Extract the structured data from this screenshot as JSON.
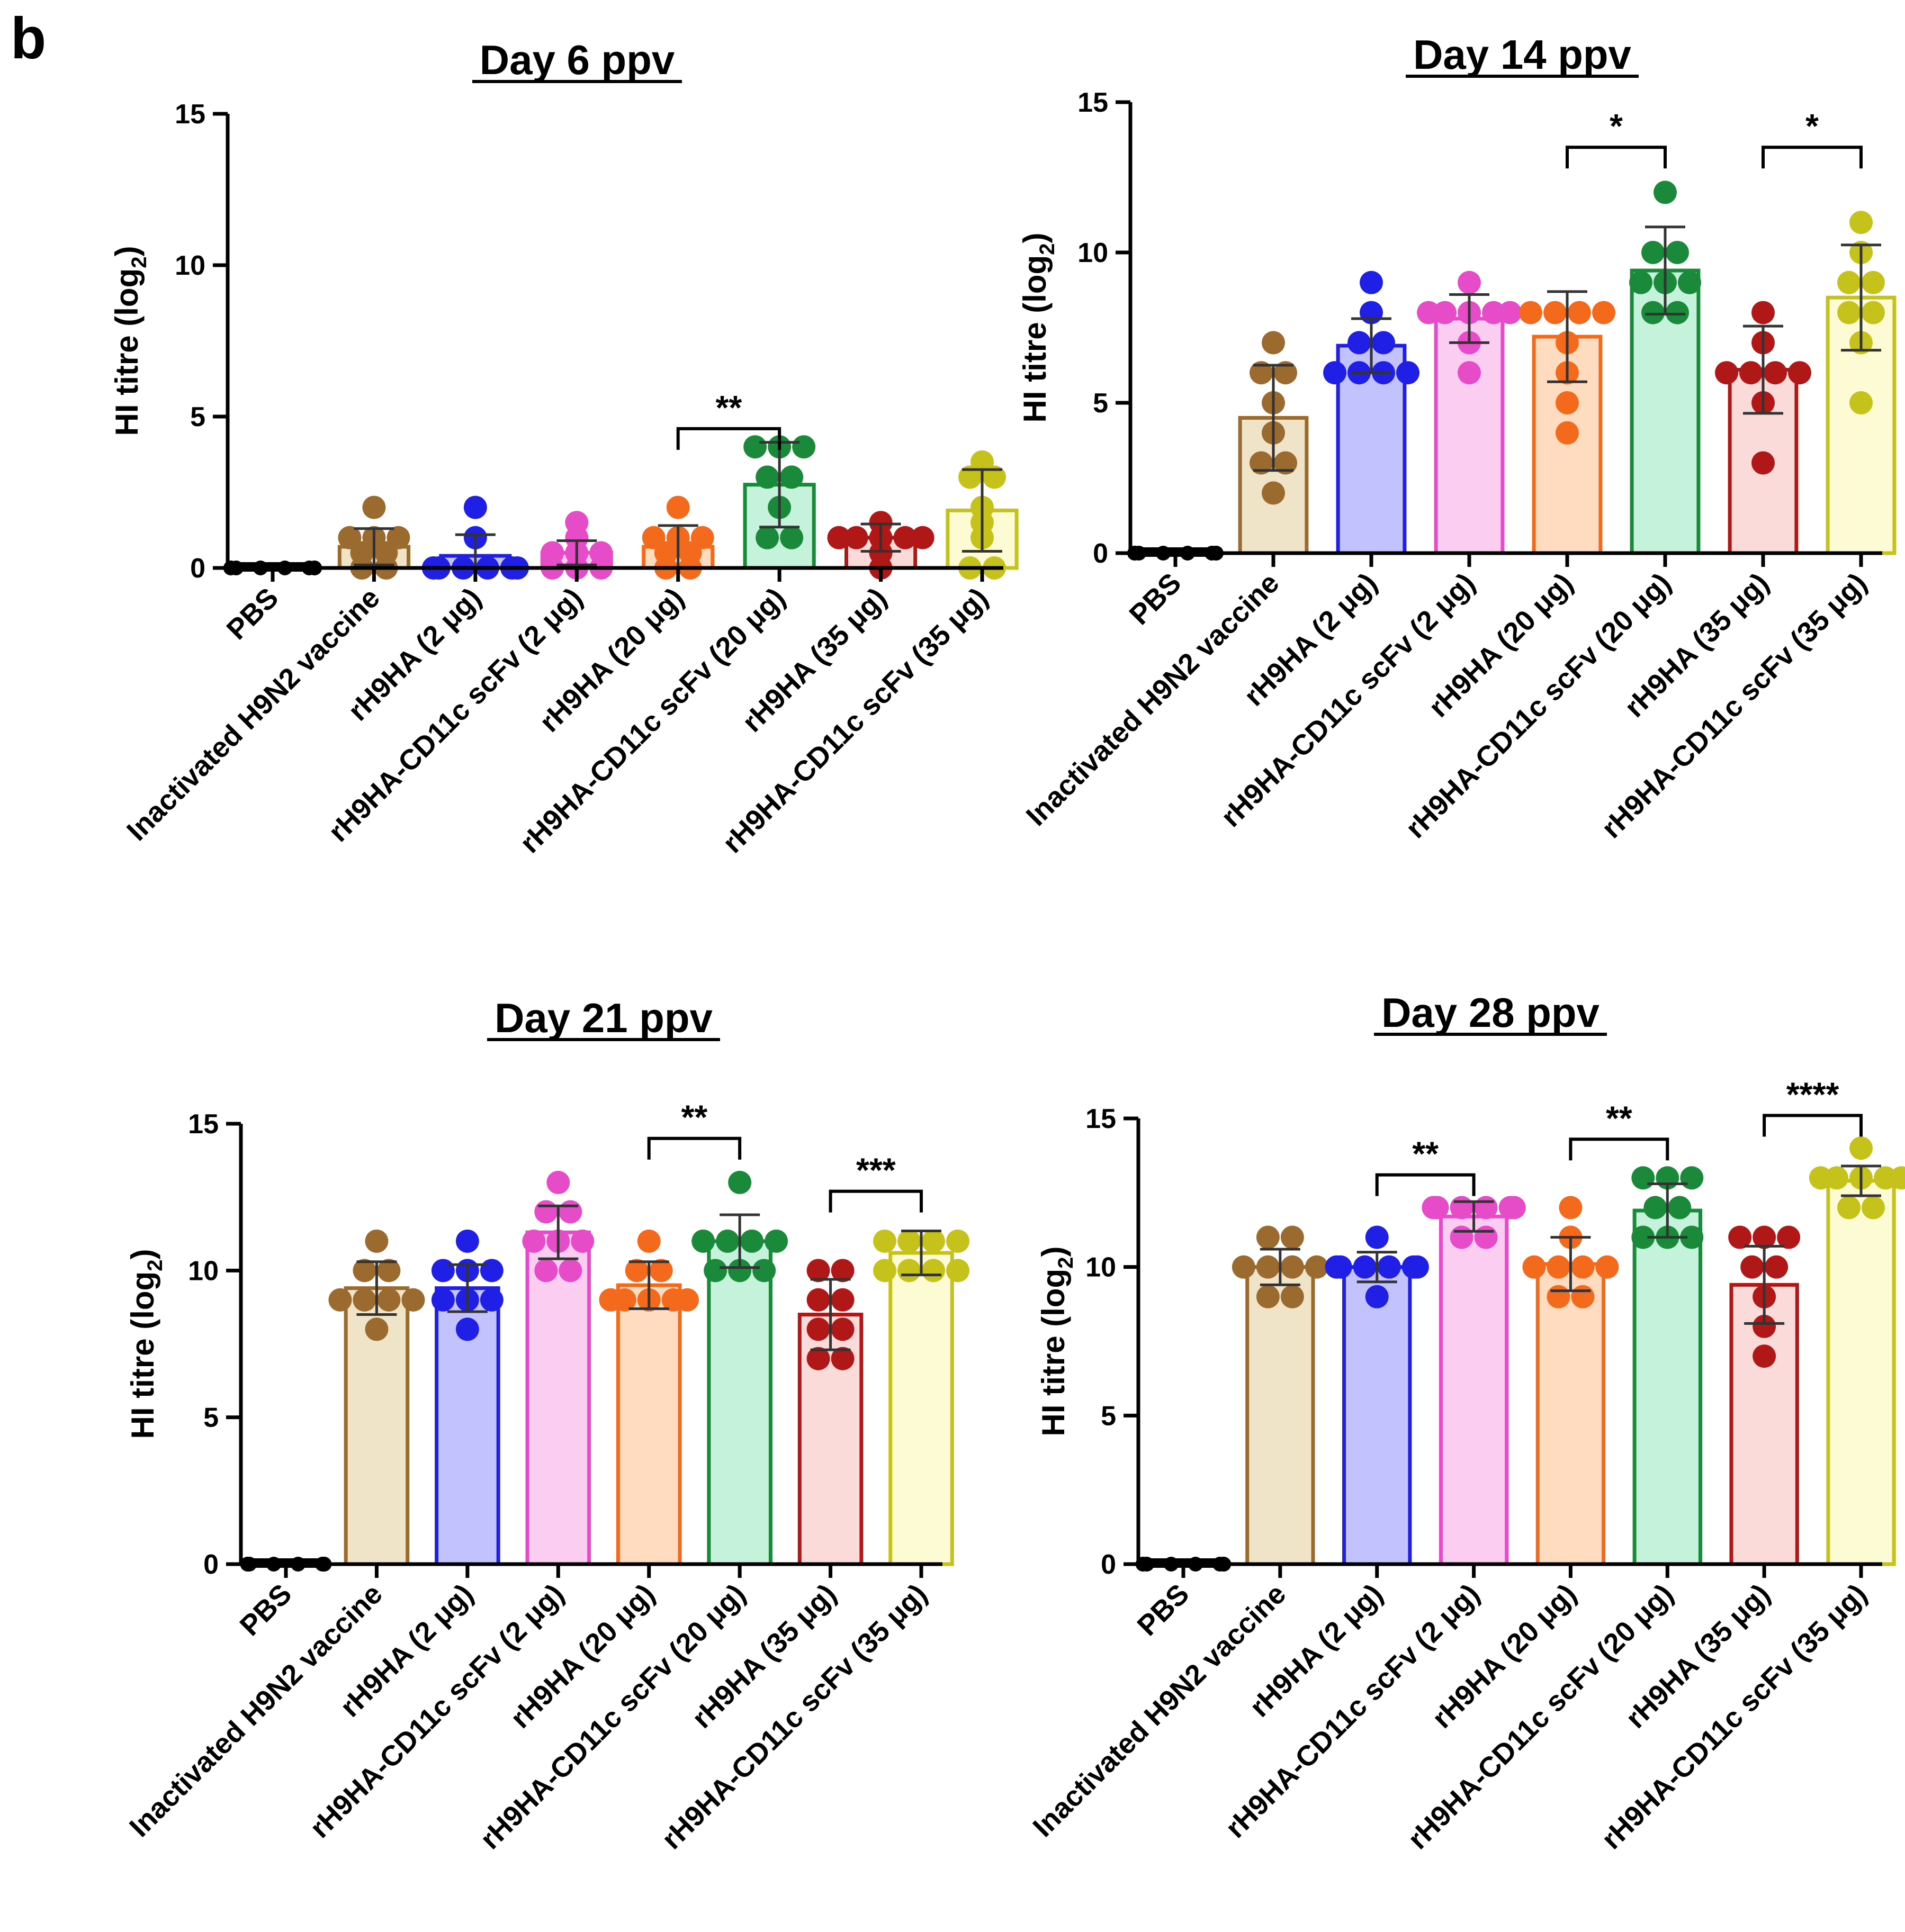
{
  "figure": {
    "panel_label": "b",
    "colors": {
      "axis": "#000000",
      "groups": [
        {
          "stroke": "#000000",
          "fill": "#ffffff",
          "dot": "#000000"
        },
        {
          "stroke": "#9a6a2e",
          "fill": "#efe3c8",
          "dot": "#9a6a2e"
        },
        {
          "stroke": "#1f1fe6",
          "fill": "#c2c2ff",
          "dot": "#1f1fe6"
        },
        {
          "stroke": "#e64bc8",
          "fill": "#fbcdf0",
          "dot": "#e64bc8"
        },
        {
          "stroke": "#f46a1c",
          "fill": "#ffdcbf",
          "dot": "#f46a1c"
        },
        {
          "stroke": "#1a8a3a",
          "fill": "#c4f2da",
          "dot": "#1a8a3a"
        },
        {
          "stroke": "#b01818",
          "fill": "#fbdada",
          "dot": "#b01818"
        },
        {
          "stroke": "#c5c21c",
          "fill": "#fdfbd4",
          "dot": "#c5c21c"
        }
      ]
    }
  },
  "chart_data": [
    {
      "type": "bar",
      "title": "Day 6 ppv",
      "ylabel_main": "HI titre  (log",
      "ylabel_sub": "2",
      "ylabel_close": ")",
      "ylim": [
        0,
        15
      ],
      "yticks": [
        "0",
        "5",
        "10",
        "15"
      ],
      "categories": [
        "PBS",
        "Inactivated H9N2 vaccine",
        "rH9HA (2 μg)",
        "rH9HA-CD11c scFv (2 μg)",
        "rH9HA (20 μg)",
        "rH9HA-CD11c scFv (20 μg)",
        "rH9HA (35 μg)",
        "rH9HA-CD11c scFv (35 μg)"
      ],
      "values": [
        0,
        0.7,
        0.4,
        0.5,
        0.7,
        2.75,
        1.0,
        1.9
      ],
      "error": [
        0,
        0.6,
        0.7,
        0.4,
        0.7,
        1.4,
        0.45,
        1.35
      ],
      "points": [
        [
          0,
          0,
          0,
          0,
          0,
          0,
          0,
          0
        ],
        [
          2,
          1,
          1,
          0.5,
          0.5,
          0,
          0,
          1
        ],
        [
          2,
          1,
          0,
          0,
          0,
          0,
          0,
          0
        ],
        [
          1.5,
          1,
          0.5,
          0.5,
          0,
          0,
          0,
          0.5
        ],
        [
          2,
          1,
          1,
          0.5,
          0.5,
          0,
          0,
          1
        ],
        [
          4,
          4,
          4,
          3,
          3,
          2,
          1,
          1
        ],
        [
          1.5,
          1,
          1,
          1,
          1,
          0.5,
          0,
          1
        ],
        [
          3.5,
          3,
          3,
          2,
          1.5,
          1,
          0,
          0
        ]
      ],
      "comparisons": [
        {
          "from": 4,
          "to": 5,
          "label": "**",
          "y": 4.6
        }
      ]
    },
    {
      "type": "bar",
      "title": "Day 14 ppv",
      "ylabel_main": "HI titre  (log",
      "ylabel_sub": "2",
      "ylabel_close": ")",
      "ylim": [
        0,
        15
      ],
      "yticks": [
        "0",
        "5",
        "10",
        "15"
      ],
      "categories": [
        "PBS",
        "Inactivated H9N2 vaccine",
        "rH9HA (2 μg)",
        "rH9HA-CD11c scFv (2 μg)",
        "rH9HA (20 μg)",
        "rH9HA-CD11c scFv (20 μg)",
        "rH9HA (35 μg)",
        "rH9HA-CD11c scFv (35 μg)"
      ],
      "values": [
        0,
        4.5,
        6.9,
        7.8,
        7.2,
        9.4,
        6.1,
        8.5
      ],
      "error": [
        0,
        1.75,
        0.9,
        0.8,
        1.5,
        1.45,
        1.45,
        1.75
      ],
      "points": [
        [
          0,
          0,
          0,
          0,
          0,
          0,
          0,
          0
        ],
        [
          7,
          6,
          6,
          5,
          4,
          3,
          2,
          3
        ],
        [
          9,
          8,
          7,
          7,
          6,
          6,
          6,
          6
        ],
        [
          9,
          8,
          8,
          8,
          8,
          7,
          6,
          8
        ],
        [
          8,
          8,
          8,
          8,
          7,
          6,
          5,
          4
        ],
        [
          12,
          10,
          10,
          9,
          9,
          8,
          8,
          9
        ],
        [
          8,
          7,
          6,
          6,
          6,
          6,
          5,
          3
        ],
        [
          11,
          10,
          9,
          9,
          8,
          8,
          7,
          5
        ]
      ],
      "comparisons": [
        {
          "from": 4,
          "to": 5,
          "label": "*",
          "y": 13.5
        },
        {
          "from": 6,
          "to": 7,
          "label": "*",
          "y": 13.5
        }
      ]
    },
    {
      "type": "bar",
      "title": "Day 21 ppv",
      "ylabel_main": "HI titre (log",
      "ylabel_sub": "2",
      "ylabel_close": ")",
      "ylim": [
        0,
        15
      ],
      "yticks": [
        "0",
        "5",
        "10",
        "15"
      ],
      "categories": [
        "PBS",
        "Inactivated H9N2 vaccine",
        "rH9HA (2 μg)",
        "rH9HA-CD11c scFv (2 μg)",
        "rH9HA (20 μg)",
        "rH9HA-CD11c scFv (20 μg)",
        "rH9HA (35 μg)",
        "rH9HA-CD11c scFv (35 μg)"
      ],
      "values": [
        0,
        9.4,
        9.4,
        11.3,
        9.5,
        11.0,
        8.5,
        10.6
      ],
      "error": [
        0,
        0.9,
        0.8,
        0.9,
        0.8,
        0.9,
        1.2,
        0.75
      ],
      "points": [
        [
          0,
          0,
          0,
          0,
          0,
          0,
          0,
          0
        ],
        [
          11,
          10,
          10,
          9,
          9,
          9,
          8,
          9
        ],
        [
          11,
          10,
          10,
          10,
          9,
          9,
          9,
          8
        ],
        [
          13,
          12,
          12,
          11,
          11,
          11,
          10,
          10
        ],
        [
          11,
          10,
          10,
          9,
          9,
          9,
          9,
          9
        ],
        [
          13,
          11,
          11,
          11,
          11,
          10,
          10,
          10
        ],
        [
          10,
          10,
          9,
          9,
          8,
          8,
          7,
          7
        ],
        [
          11,
          11,
          11,
          11,
          10,
          10,
          10,
          10
        ]
      ],
      "comparisons": [
        {
          "from": 4,
          "to": 5,
          "label": "**",
          "y": 14.5
        },
        {
          "from": 6,
          "to": 7,
          "label": "***",
          "y": 12.7
        }
      ]
    },
    {
      "type": "bar",
      "title": "Day 28 ppv",
      "ylabel_main": "HI titre  (log",
      "ylabel_sub": "2",
      "ylabel_close": ")",
      "ylim": [
        0,
        15
      ],
      "yticks": [
        "0",
        "5",
        "10",
        "15"
      ],
      "categories": [
        "PBS",
        "Inactivated H9N2 vaccine",
        "rH9HA (2 μg)",
        "rH9HA-CD11c scFv (2 μg)",
        "rH9HA (20 μg)",
        "rH9HA-CD11c scFv (20 μg)",
        "rH9HA (35 μg)",
        "rH9HA-CD11c scFv (35 μg)"
      ],
      "values": [
        0,
        10.0,
        10.0,
        11.7,
        10.1,
        11.9,
        9.4,
        12.9
      ],
      "error": [
        0,
        0.6,
        0.5,
        0.5,
        0.9,
        0.9,
        1.3,
        0.5
      ],
      "points": [
        [
          0,
          0,
          0,
          0,
          0,
          0,
          0,
          0
        ],
        [
          11,
          11,
          10,
          10,
          10,
          10,
          9,
          9
        ],
        [
          11,
          10,
          10,
          10,
          10,
          10,
          9,
          10
        ],
        [
          12,
          12,
          12,
          12,
          12,
          12,
          11,
          11
        ],
        [
          12,
          11,
          10,
          10,
          10,
          10,
          9,
          9
        ],
        [
          13,
          13,
          13,
          12,
          12,
          11,
          11,
          11
        ],
        [
          11,
          11,
          11,
          10,
          10,
          9,
          8,
          7
        ],
        [
          14,
          13,
          13,
          13,
          13,
          13,
          12,
          12
        ]
      ],
      "comparisons": [
        {
          "from": 2,
          "to": 3,
          "label": "**",
          "y": 13.1
        },
        {
          "from": 4,
          "to": 5,
          "label": "**",
          "y": 14.3
        },
        {
          "from": 6,
          "to": 7,
          "label": "****",
          "y": 15.1
        }
      ]
    }
  ]
}
